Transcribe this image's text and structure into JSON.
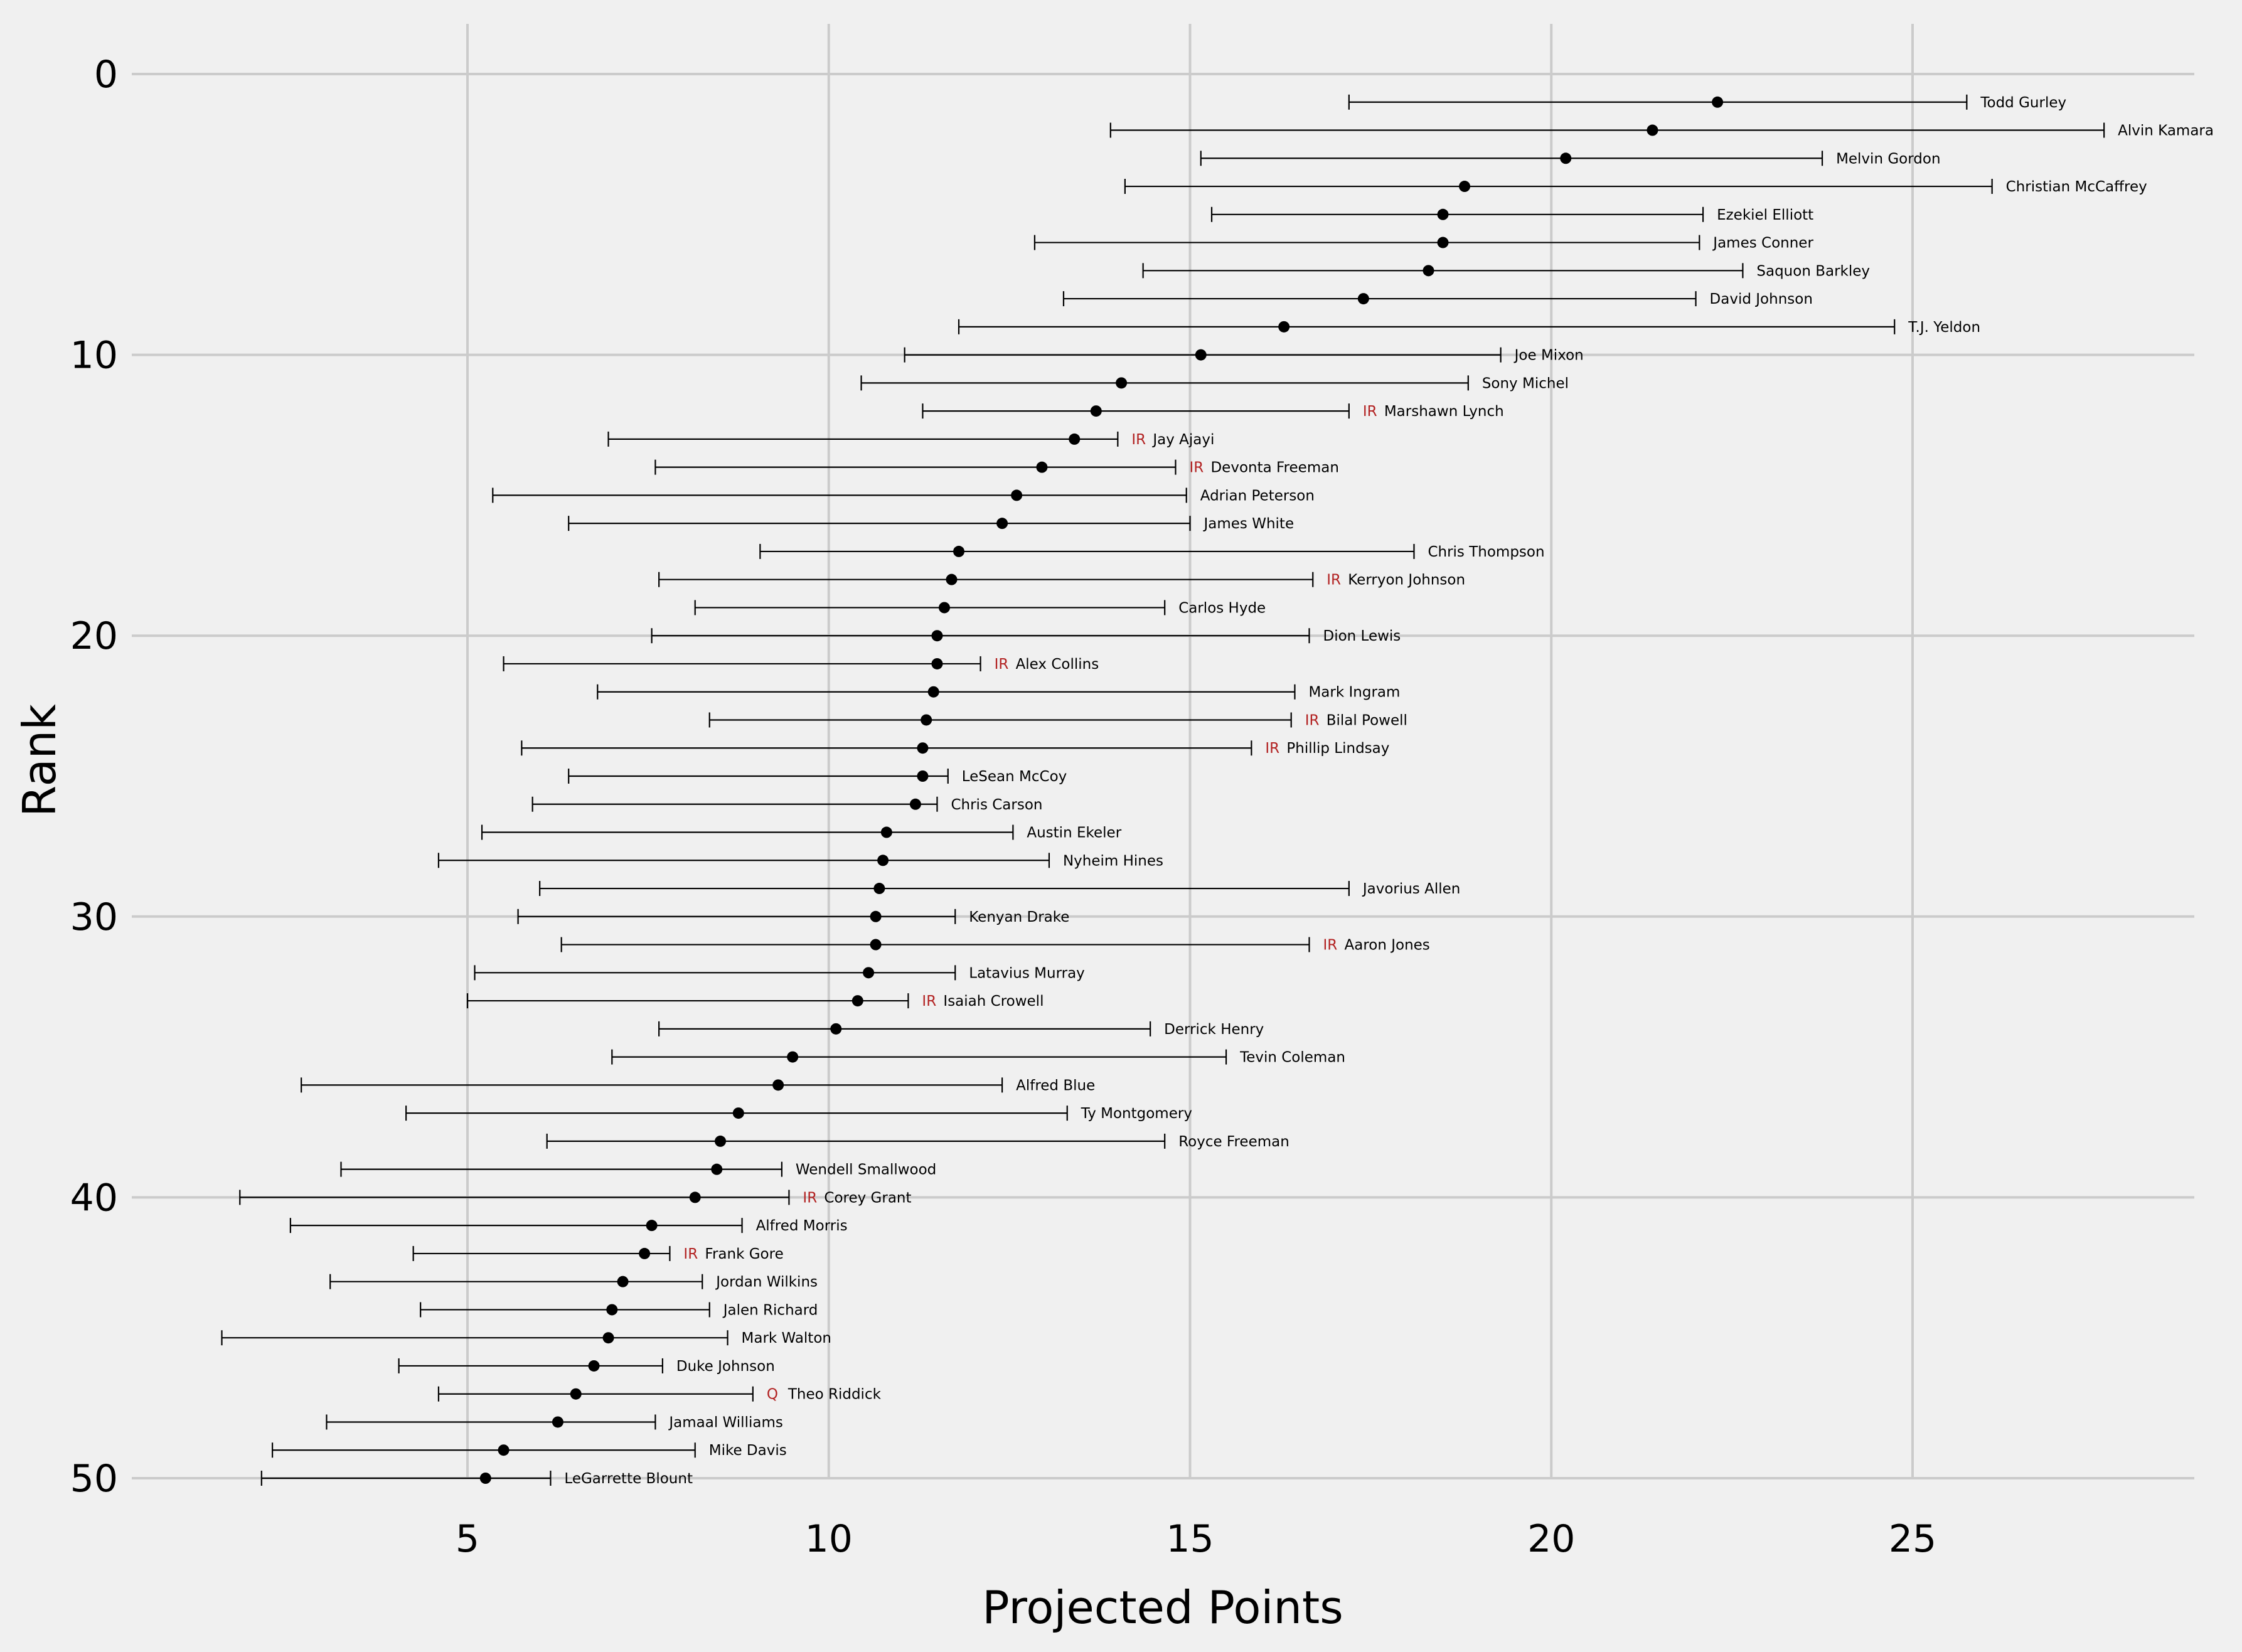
{
  "chart_data": {
    "type": "scatter",
    "style": "dot plot with horizontal error bars (range) per player",
    "title": "",
    "xlabel": "Projected Points",
    "ylabel": "Rank",
    "xlim": [
      0.5,
      29
    ],
    "ylim": [
      52,
      -2
    ],
    "x_ticks": [
      5,
      10,
      15,
      20,
      25
    ],
    "y_ticks": [
      0,
      10,
      20,
      30,
      40,
      50
    ],
    "grid": true,
    "colors": {
      "background": "#f0f0f0",
      "grid": "#cbcbcb",
      "point": "#000000",
      "errorbar": "#000000",
      "status": "#b22222"
    },
    "players": [
      {
        "rank": 1,
        "name": "Todd Gurley",
        "proj": 22.3,
        "low": 17.2,
        "high": 25.75,
        "status": ""
      },
      {
        "rank": 2,
        "name": "Alvin Kamara",
        "proj": 21.4,
        "low": 13.9,
        "high": 27.65,
        "status": ""
      },
      {
        "rank": 3,
        "name": "Melvin Gordon",
        "proj": 20.2,
        "low": 15.15,
        "high": 23.75,
        "status": ""
      },
      {
        "rank": 4,
        "name": "Christian McCaffrey",
        "proj": 18.8,
        "low": 14.1,
        "high": 26.1,
        "status": ""
      },
      {
        "rank": 5,
        "name": "Ezekiel Elliott",
        "proj": 18.5,
        "low": 15.3,
        "high": 22.1,
        "status": ""
      },
      {
        "rank": 6,
        "name": "James Conner",
        "proj": 18.5,
        "low": 12.85,
        "high": 22.05,
        "status": ""
      },
      {
        "rank": 7,
        "name": "Saquon Barkley",
        "proj": 18.3,
        "low": 14.35,
        "high": 22.65,
        "status": ""
      },
      {
        "rank": 8,
        "name": "David Johnson",
        "proj": 17.4,
        "low": 13.25,
        "high": 22.0,
        "status": ""
      },
      {
        "rank": 9,
        "name": "T.J. Yeldon",
        "proj": 16.3,
        "low": 11.8,
        "high": 24.75,
        "status": ""
      },
      {
        "rank": 10,
        "name": "Joe Mixon",
        "proj": 15.15,
        "low": 11.05,
        "high": 19.3,
        "status": ""
      },
      {
        "rank": 11,
        "name": "Sony Michel",
        "proj": 14.05,
        "low": 10.45,
        "high": 18.85,
        "status": ""
      },
      {
        "rank": 12,
        "name": "Marshawn Lynch",
        "proj": 13.7,
        "low": 11.3,
        "high": 17.2,
        "status": "IR"
      },
      {
        "rank": 13,
        "name": "Jay Ajayi",
        "proj": 13.4,
        "low": 6.95,
        "high": 14.0,
        "status": "IR"
      },
      {
        "rank": 14,
        "name": "Devonta Freeman",
        "proj": 12.95,
        "low": 7.6,
        "high": 14.8,
        "status": "IR"
      },
      {
        "rank": 15,
        "name": "Adrian Peterson",
        "proj": 12.6,
        "low": 5.35,
        "high": 14.95,
        "status": ""
      },
      {
        "rank": 16,
        "name": "James White",
        "proj": 12.4,
        "low": 6.4,
        "high": 15.0,
        "status": ""
      },
      {
        "rank": 17,
        "name": "Chris Thompson",
        "proj": 11.8,
        "low": 9.05,
        "high": 18.1,
        "status": ""
      },
      {
        "rank": 18,
        "name": "Kerryon Johnson",
        "proj": 11.7,
        "low": 7.65,
        "high": 16.7,
        "status": "IR"
      },
      {
        "rank": 19,
        "name": "Carlos Hyde",
        "proj": 11.6,
        "low": 8.15,
        "high": 14.65,
        "status": ""
      },
      {
        "rank": 20,
        "name": "Dion Lewis",
        "proj": 11.5,
        "low": 7.55,
        "high": 16.65,
        "status": ""
      },
      {
        "rank": 21,
        "name": "Alex Collins",
        "proj": 11.5,
        "low": 5.5,
        "high": 12.1,
        "status": "IR"
      },
      {
        "rank": 22,
        "name": "Mark Ingram",
        "proj": 11.45,
        "low": 6.8,
        "high": 16.45,
        "status": ""
      },
      {
        "rank": 23,
        "name": "Bilal Powell",
        "proj": 11.35,
        "low": 8.35,
        "high": 16.4,
        "status": "IR"
      },
      {
        "rank": 24,
        "name": "Phillip Lindsay",
        "proj": 11.3,
        "low": 5.75,
        "high": 15.85,
        "status": "IR"
      },
      {
        "rank": 25,
        "name": "LeSean McCoy",
        "proj": 11.3,
        "low": 6.4,
        "high": 11.65,
        "status": ""
      },
      {
        "rank": 26,
        "name": "Chris Carson",
        "proj": 11.2,
        "low": 5.9,
        "high": 11.5,
        "status": ""
      },
      {
        "rank": 27,
        "name": "Austin Ekeler",
        "proj": 10.8,
        "low": 5.2,
        "high": 12.55,
        "status": ""
      },
      {
        "rank": 28,
        "name": "Nyheim Hines",
        "proj": 10.75,
        "low": 4.6,
        "high": 13.05,
        "status": ""
      },
      {
        "rank": 29,
        "name": "Javorius Allen",
        "proj": 10.7,
        "low": 6.0,
        "high": 17.2,
        "status": ""
      },
      {
        "rank": 30,
        "name": "Kenyan Drake",
        "proj": 10.65,
        "low": 5.7,
        "high": 11.75,
        "status": ""
      },
      {
        "rank": 31,
        "name": "Aaron Jones",
        "proj": 10.65,
        "low": 6.3,
        "high": 16.65,
        "status": "IR"
      },
      {
        "rank": 32,
        "name": "Latavius Murray",
        "proj": 10.55,
        "low": 5.1,
        "high": 11.75,
        "status": ""
      },
      {
        "rank": 33,
        "name": "Isaiah Crowell",
        "proj": 10.4,
        "low": 5.0,
        "high": 11.1,
        "status": "IR"
      },
      {
        "rank": 34,
        "name": "Derrick Henry",
        "proj": 10.1,
        "low": 7.65,
        "high": 14.45,
        "status": ""
      },
      {
        "rank": 35,
        "name": "Tevin Coleman",
        "proj": 9.5,
        "low": 7.0,
        "high": 15.5,
        "status": ""
      },
      {
        "rank": 36,
        "name": "Alfred Blue",
        "proj": 9.3,
        "low": 2.7,
        "high": 12.4,
        "status": ""
      },
      {
        "rank": 37,
        "name": "Ty Montgomery",
        "proj": 8.75,
        "low": 4.15,
        "high": 13.3,
        "status": ""
      },
      {
        "rank": 38,
        "name": "Royce Freeman",
        "proj": 8.5,
        "low": 6.1,
        "high": 14.65,
        "status": ""
      },
      {
        "rank": 39,
        "name": "Wendell Smallwood",
        "proj": 8.45,
        "low": 3.25,
        "high": 9.35,
        "status": ""
      },
      {
        "rank": 40,
        "name": "Corey Grant",
        "proj": 8.15,
        "low": 1.85,
        "high": 9.45,
        "status": "IR"
      },
      {
        "rank": 41,
        "name": "Alfred Morris",
        "proj": 7.55,
        "low": 2.55,
        "high": 8.8,
        "status": ""
      },
      {
        "rank": 42,
        "name": "Frank Gore",
        "proj": 7.45,
        "low": 4.25,
        "high": 7.8,
        "status": "IR"
      },
      {
        "rank": 43,
        "name": "Jordan Wilkins",
        "proj": 7.15,
        "low": 3.1,
        "high": 8.25,
        "status": ""
      },
      {
        "rank": 44,
        "name": "Jalen Richard",
        "proj": 7.0,
        "low": 4.35,
        "high": 8.35,
        "status": ""
      },
      {
        "rank": 45,
        "name": "Mark Walton",
        "proj": 6.95,
        "low": 1.6,
        "high": 8.6,
        "status": ""
      },
      {
        "rank": 46,
        "name": "Duke Johnson",
        "proj": 6.75,
        "low": 4.05,
        "high": 7.7,
        "status": ""
      },
      {
        "rank": 47,
        "name": "Theo Riddick",
        "proj": 6.5,
        "low": 4.6,
        "high": 8.95,
        "status": "Q"
      },
      {
        "rank": 48,
        "name": "Jamaal Williams",
        "proj": 6.25,
        "low": 3.05,
        "high": 7.6,
        "status": ""
      },
      {
        "rank": 49,
        "name": "Mike Davis",
        "proj": 5.5,
        "low": 2.3,
        "high": 8.15,
        "status": ""
      },
      {
        "rank": 50,
        "name": "LeGarrette Blount",
        "proj": 5.25,
        "low": 2.15,
        "high": 6.15,
        "status": ""
      }
    ]
  }
}
